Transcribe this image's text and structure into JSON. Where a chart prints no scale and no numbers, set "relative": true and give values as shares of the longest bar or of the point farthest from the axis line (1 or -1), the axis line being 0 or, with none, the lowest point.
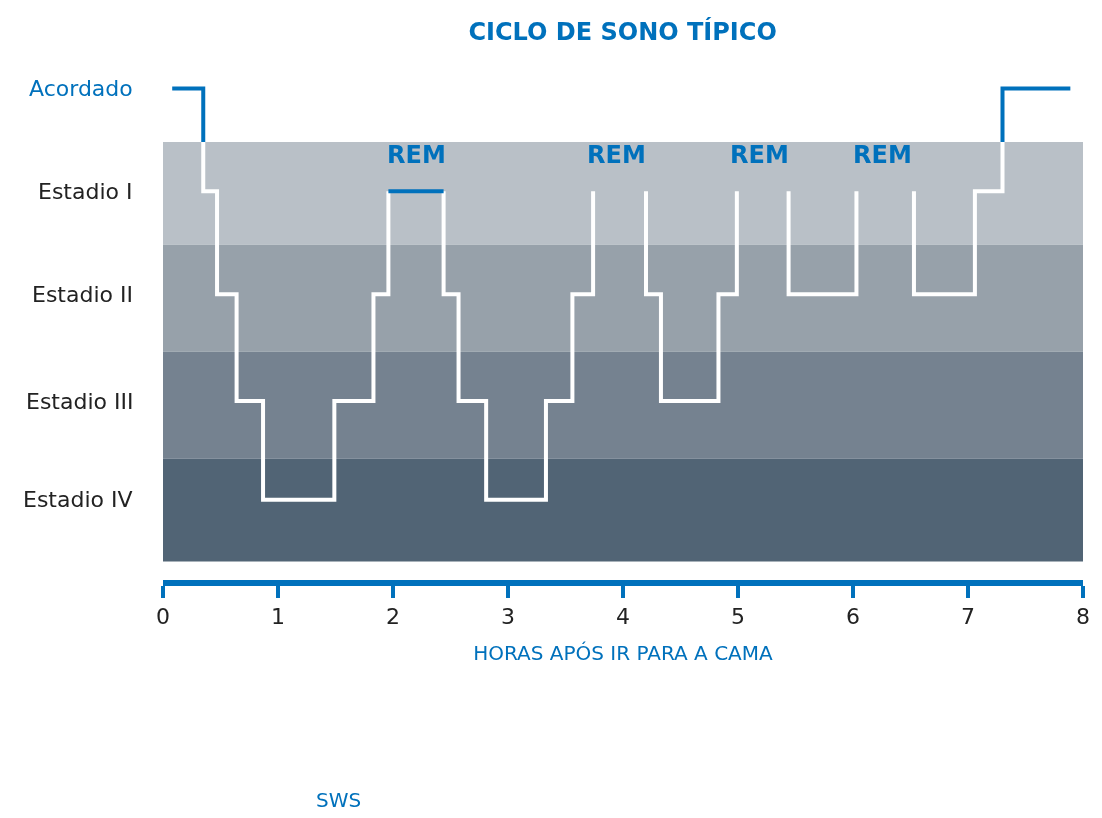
{
  "chart_data": {
    "type": "line",
    "title": "CICLO DE SONO TÍPICO",
    "xlabel": "HORAS APÓS IR PARA A CAMA",
    "xlim": [
      0,
      8
    ],
    "xticks": [
      0,
      1,
      2,
      3,
      4,
      5,
      6,
      7,
      8
    ],
    "relative": true,
    "grid": false,
    "marker": "none",
    "line_style": "solid",
    "series": [
      {
        "color": "#0071bc",
        "x": [
          0.08,
          0.35,
          0.35
        ],
        "values": [
          1,
          1,
          0.87
        ]
      },
      {
        "color": "#ffffff",
        "x": [
          0.35,
          0.35,
          0.47,
          0.47,
          0.64,
          0.64,
          0.87,
          0.87,
          1.49,
          1.49,
          1.83,
          1.83,
          1.96,
          1.96,
          2.2,
          2.44,
          2.44,
          2.57,
          2.57,
          2.81,
          2.81,
          3.33,
          3.33,
          3.56,
          3.56,
          3.74,
          3.74,
          3.97,
          4.2,
          4.2,
          4.33,
          4.33,
          4.83,
          4.83,
          4.99,
          4.99,
          5.2,
          5.44,
          5.44,
          6.03,
          6.03,
          6.3,
          6.53,
          6.53,
          7.06,
          7.06,
          7.3,
          7.3
        ],
        "values": [
          0.87,
          0.75,
          0.75,
          0.5,
          0.5,
          0.24,
          0.24,
          0,
          0,
          0.24,
          0.24,
          0.5,
          0.5,
          0.75,
          null,
          0.75,
          0.5,
          0.5,
          0.24,
          0.24,
          0,
          0,
          0.24,
          0.24,
          0.5,
          0.5,
          0.75,
          null,
          0.75,
          0.5,
          0.5,
          0.24,
          0.24,
          0.5,
          0.5,
          0.75,
          null,
          0.75,
          0.5,
          0.5,
          0.75,
          null,
          0.75,
          0.5,
          0.5,
          0.75,
          0.75,
          0.87
        ]
      },
      {
        "color": "#0071bc",
        "x": [
          1.96,
          2.44
        ],
        "values": [
          0.75,
          0.75
        ]
      },
      {
        "color": "#0071bc",
        "x": [
          7.3,
          7.3,
          7.89
        ],
        "values": [
          0.87,
          1,
          1
        ]
      }
    ],
    "bands": [
      {
        "axis": "y",
        "from": 0.62,
        "to": 0.87,
        "color": "#b9c0c7"
      },
      {
        "axis": "y",
        "from": 0.36,
        "to": 0.62,
        "color": "#97a1aa"
      },
      {
        "axis": "y",
        "from": 0.1,
        "to": 0.36,
        "color": "#758290"
      },
      {
        "axis": "y",
        "from": -0.15,
        "to": 0.1,
        "color": "#516475"
      }
    ],
    "annotations": [
      "Acordado",
      "Estadio I",
      "Estadio II",
      "Estadio III",
      "Estadio IV",
      "REM",
      "REM",
      "REM",
      "REM",
      "SWS"
    ]
  }
}
